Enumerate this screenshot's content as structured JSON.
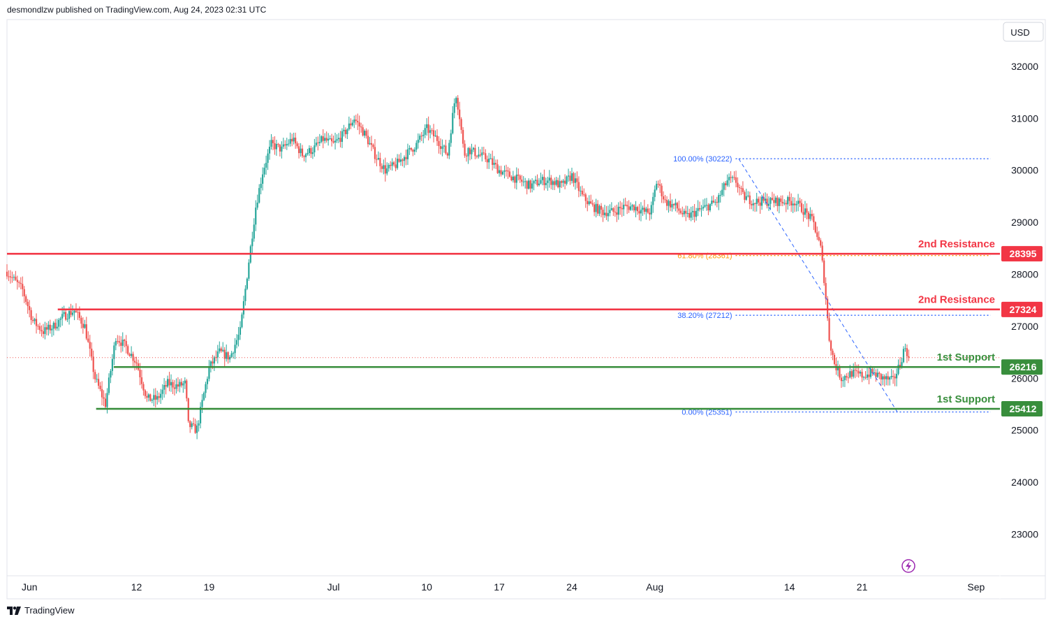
{
  "header": {
    "text": "desmondlzw published on TradingView.com, Aug 24, 2023 02:31 UTC"
  },
  "footer": {
    "brand": "TradingView"
  },
  "currency": "USD",
  "colors": {
    "up": "#26a69a",
    "down": "#ef5350",
    "resistance": "#f23645",
    "support": "#388e3c",
    "fib": "#2962ff",
    "fib618": "#ff9800"
  },
  "chart_data": {
    "type": "candlestick",
    "title": "",
    "ylim": [
      22200,
      32900
    ],
    "y_ticks": [
      23000,
      24000,
      25000,
      26000,
      27000,
      28000,
      29000,
      30000,
      31000,
      32000
    ],
    "x_ticks": [
      {
        "label": "Jun",
        "day": 0
      },
      {
        "label": "12",
        "day": 11
      },
      {
        "label": "19",
        "day": 18
      },
      {
        "label": "Jul",
        "day": 30
      },
      {
        "label": "10",
        "day": 39
      },
      {
        "label": "17",
        "day": 46
      },
      {
        "label": "24",
        "day": 53
      },
      {
        "label": "Aug",
        "day": 61
      },
      {
        "label": "14",
        "day": 74
      },
      {
        "label": "21",
        "day": 81
      },
      {
        "label": "Sep",
        "day": 92
      }
    ],
    "x_range_days": [
      -1.5,
      94.3
    ],
    "last_day": 85.6,
    "close_path": [
      [
        -1.5,
        28050
      ],
      [
        0,
        27700
      ],
      [
        1,
        27100
      ],
      [
        2,
        26900
      ],
      [
        3,
        27000
      ],
      [
        4,
        27200
      ],
      [
        5,
        27300
      ],
      [
        6,
        27000
      ],
      [
        7,
        26000
      ],
      [
        8,
        25500
      ],
      [
        9,
        26800
      ],
      [
        10,
        26600
      ],
      [
        11,
        26300
      ],
      [
        12,
        25600
      ],
      [
        13,
        25600
      ],
      [
        14,
        25900
      ],
      [
        15,
        25850
      ],
      [
        15.7,
        25900
      ],
      [
        16,
        25100
      ],
      [
        16.8,
        25000
      ],
      [
        17.5,
        25700
      ],
      [
        18,
        26200
      ],
      [
        19,
        26500
      ],
      [
        20,
        26400
      ],
      [
        21,
        26900
      ],
      [
        21.8,
        28200
      ],
      [
        22.5,
        29300
      ],
      [
        23.2,
        30000
      ],
      [
        24,
        30500
      ],
      [
        25,
        30400
      ],
      [
        26,
        30600
      ],
      [
        27,
        30300
      ],
      [
        28,
        30400
      ],
      [
        29,
        30600
      ],
      [
        30,
        30500
      ],
      [
        31,
        30700
      ],
      [
        32,
        31000
      ],
      [
        33,
        30700
      ],
      [
        34,
        30300
      ],
      [
        35,
        30000
      ],
      [
        36,
        30100
      ],
      [
        37,
        30300
      ],
      [
        38,
        30500
      ],
      [
        39,
        30800
      ],
      [
        40,
        30600
      ],
      [
        41,
        30300
      ],
      [
        41.8,
        31500
      ],
      [
        42.2,
        31000
      ],
      [
        42.6,
        30300
      ],
      [
        43,
        30400
      ],
      [
        44,
        30300
      ],
      [
        45,
        30200
      ],
      [
        46,
        30000
      ],
      [
        47,
        29900
      ],
      [
        48,
        29800
      ],
      [
        49,
        29700
      ],
      [
        50,
        29800
      ],
      [
        51,
        29800
      ],
      [
        52,
        29700
      ],
      [
        53,
        29900
      ],
      [
        54,
        29500
      ],
      [
        55,
        29300
      ],
      [
        56,
        29200
      ],
      [
        57,
        29200
      ],
      [
        58,
        29300
      ],
      [
        59,
        29300
      ],
      [
        60,
        29200
      ],
      [
        60.6,
        29200
      ],
      [
        61.2,
        29800
      ],
      [
        62,
        29400
      ],
      [
        63,
        29300
      ],
      [
        64,
        29100
      ],
      [
        65,
        29200
      ],
      [
        66,
        29300
      ],
      [
        67,
        29400
      ],
      [
        68,
        29800
      ],
      [
        68.8,
        29800
      ],
      [
        69.5,
        29500
      ],
      [
        70.5,
        29400
      ],
      [
        71.5,
        29400
      ],
      [
        72.5,
        29400
      ],
      [
        73.5,
        29400
      ],
      [
        74.5,
        29400
      ],
      [
        75.5,
        29200
      ],
      [
        76.3,
        29000
      ],
      [
        77,
        28500
      ],
      [
        77.4,
        27800
      ],
      [
        77.8,
        26800
      ],
      [
        78.3,
        26300
      ],
      [
        79,
        26000
      ],
      [
        80,
        26100
      ],
      [
        81,
        26050
      ],
      [
        82,
        26100
      ],
      [
        83,
        26000
      ],
      [
        84,
        25950
      ],
      [
        84.7,
        26300
      ],
      [
        85.1,
        26600
      ],
      [
        85.6,
        26400
      ]
    ],
    "last_close": 26398,
    "levels": [
      {
        "label": "2nd Resistance",
        "value": 28395,
        "tag": "28395",
        "kind": "resistance",
        "start_day": -1.5,
        "label_y": 28585
      },
      {
        "label": "2nd Resistance",
        "value": 27324,
        "tag": "27324",
        "kind": "resistance",
        "start_day": 3.4,
        "label_y": 27514
      },
      {
        "label": "1st Support",
        "value": 26216,
        "tag": "26216",
        "kind": "support",
        "start_day": 8.8,
        "label_y": 26406
      },
      {
        "label": "1st Support",
        "value": 25412,
        "tag": "25412",
        "kind": "support",
        "start_day": 7.1,
        "label_y": 25601
      }
    ],
    "fibonacci": {
      "start_day": 68.8,
      "end_day": 93.4,
      "levels": [
        {
          "text": "100.00% (30222)",
          "value": 30222
        },
        {
          "text": "61.80% (28361)",
          "value": 28361
        },
        {
          "text": "38.20% (27212)",
          "value": 27212
        },
        {
          "text": "0.00% (25351)",
          "value": 25351
        }
      ],
      "trend_from": [
        69.1,
        30222
      ],
      "trend_to": [
        84.4,
        25351
      ]
    }
  }
}
